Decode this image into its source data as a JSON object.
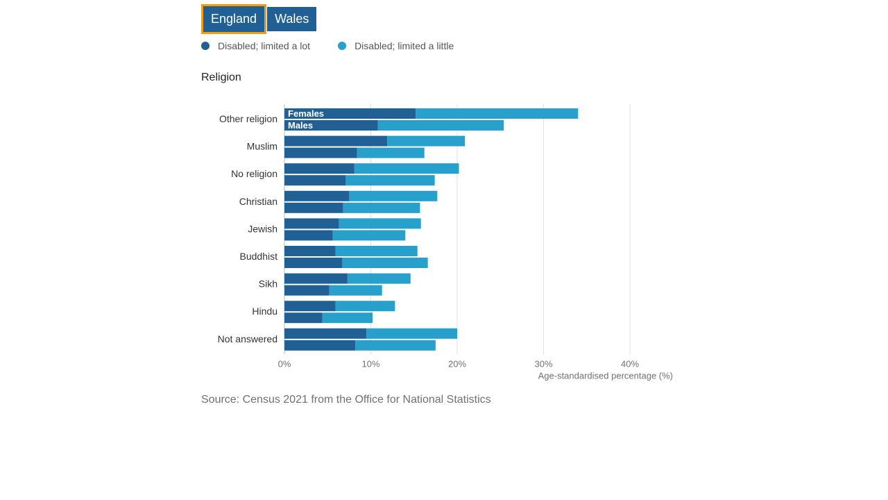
{
  "tabs": [
    {
      "label": "England",
      "active": true
    },
    {
      "label": "Wales",
      "active": false
    }
  ],
  "legend": [
    {
      "label": "Disabled; limited a lot",
      "color": "#206095"
    },
    {
      "label": "Disabled; limited a little",
      "color": "#27a0cc"
    }
  ],
  "subtitle": "Religion",
  "source": "Source: Census 2021 from the Office for National Statistics",
  "chart_data": {
    "type": "bar",
    "orientation": "horizontal",
    "stacked": true,
    "categories": [
      "Other religion",
      "Muslim",
      "No religion",
      "Christian",
      "Jewish",
      "Buddhist",
      "Sikh",
      "Hindu",
      "Not answered"
    ],
    "groups": [
      "Females",
      "Males"
    ],
    "series": [
      {
        "name": "Disabled; limited a lot",
        "color": "#206095",
        "females": [
          15.2,
          11.9,
          8.1,
          7.5,
          6.3,
          5.9,
          7.3,
          5.9,
          9.5
        ],
        "males": [
          10.8,
          8.4,
          7.1,
          6.8,
          5.6,
          6.7,
          5.2,
          4.4,
          8.2
        ]
      },
      {
        "name": "Disabled; limited a little",
        "color": "#27a0cc",
        "females": [
          18.8,
          9.0,
          12.1,
          10.2,
          9.5,
          9.5,
          7.3,
          6.9,
          10.5
        ],
        "males": [
          14.6,
          7.8,
          10.3,
          8.9,
          8.4,
          9.9,
          6.1,
          5.8,
          9.3
        ]
      }
    ],
    "xlabel": "Age-standardised percentage (%)",
    "xlim": [
      0,
      40
    ],
    "xticks": [
      "0%",
      "10%",
      "20%",
      "30%",
      "40%"
    ],
    "grid": true
  }
}
